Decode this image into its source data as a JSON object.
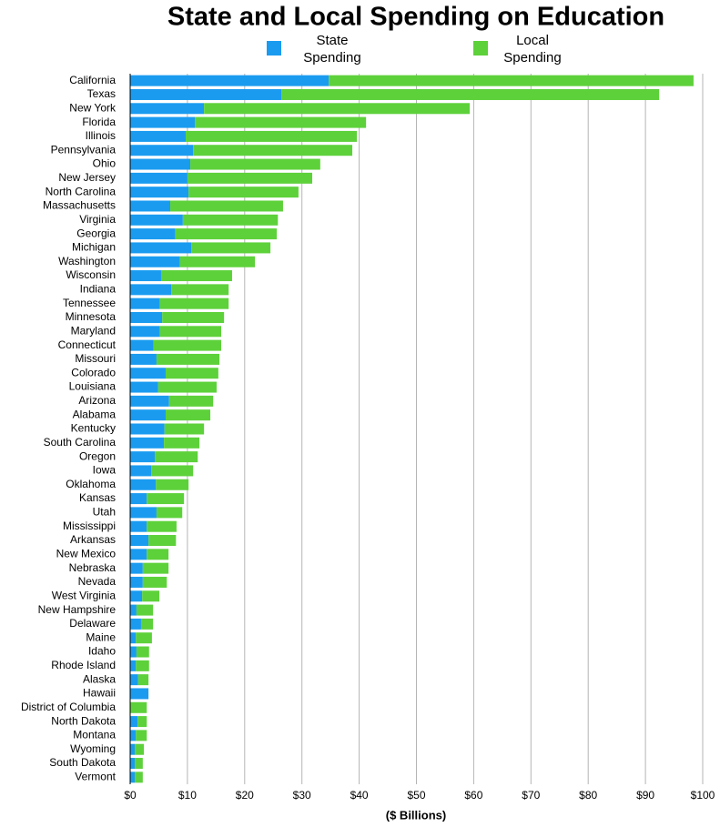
{
  "chart_data": {
    "type": "stacked_bar_horizontal",
    "title": "State and Local Spending on Education",
    "x_label": "($ Billions)",
    "categories": [
      "California",
      "Texas",
      "New York",
      "Florida",
      "Illinois",
      "Pennsylvania",
      "Ohio",
      "New Jersey",
      "North Carolina",
      "Massachusetts",
      "Virginia",
      "Georgia",
      "Michigan",
      "Washington",
      "Wisconsin",
      "Indiana",
      "Tennessee",
      "Minnesota",
      "Maryland",
      "Connecticut",
      "Missouri",
      "Colorado",
      "Louisiana",
      "Arizona",
      "Alabama",
      "Kentucky",
      "South Carolina",
      "Oregon",
      "Iowa",
      "Oklahoma",
      "Kansas",
      "Utah",
      "Mississippi",
      "Arkansas",
      "New Mexico",
      "Nebraska",
      "Nevada",
      "West Virginia",
      "New Hampshire",
      "Delaware",
      "Maine",
      "Idaho",
      "Rhode Island",
      "Alaska",
      "Hawaii",
      "District of Columbia",
      "North Dakota",
      "Montana",
      "Wyoming",
      "South Dakota",
      "Vermont"
    ],
    "series": [
      {
        "name": "State Spending",
        "color": "#1a9bf0",
        "values": [
          34.7,
          26.4,
          12.9,
          11.3,
          9.7,
          11.0,
          10.5,
          10.0,
          10.2,
          7.0,
          9.2,
          7.9,
          10.7,
          8.7,
          5.4,
          7.2,
          5.2,
          5.6,
          5.2,
          4.1,
          4.6,
          6.2,
          4.9,
          6.8,
          6.2,
          6.0,
          5.9,
          4.3,
          3.7,
          4.5,
          2.9,
          4.6,
          2.9,
          3.2,
          2.9,
          2.2,
          2.2,
          2.1,
          1.1,
          1.9,
          1.0,
          1.1,
          1.0,
          1.4,
          3.2,
          0,
          1.3,
          1.0,
          0.8,
          0.8,
          0.8
        ]
      },
      {
        "name": "Local Spending",
        "color": "#5dd13a",
        "values": [
          63.7,
          66.0,
          46.4,
          29.9,
          29.9,
          27.8,
          22.7,
          21.8,
          19.2,
          19.7,
          16.6,
          17.7,
          13.8,
          13.1,
          12.4,
          10.0,
          12.0,
          10.8,
          10.7,
          11.8,
          11.0,
          9.2,
          10.2,
          7.7,
          7.8,
          6.9,
          6.2,
          7.5,
          7.3,
          5.7,
          6.5,
          4.5,
          5.2,
          4.8,
          3.8,
          4.5,
          4.2,
          3.0,
          2.9,
          2.1,
          2.8,
          2.2,
          2.3,
          1.8,
          0,
          2.9,
          1.6,
          1.9,
          1.6,
          1.4,
          1.4
        ]
      }
    ],
    "xlim": [
      0,
      100
    ],
    "xticks": [
      {
        "value": 0,
        "label": "$0"
      },
      {
        "value": 10,
        "label": "$10"
      },
      {
        "value": 20,
        "label": "$20"
      },
      {
        "value": 30,
        "label": "$30"
      },
      {
        "value": 40,
        "label": "$40"
      },
      {
        "value": 50,
        "label": "$50"
      },
      {
        "value": 60,
        "label": "$60"
      },
      {
        "value": 70,
        "label": "$70"
      },
      {
        "value": 80,
        "label": "$80"
      },
      {
        "value": 90,
        "label": "$90"
      },
      {
        "value": 100,
        "label": "$100"
      }
    ],
    "grid": true
  }
}
